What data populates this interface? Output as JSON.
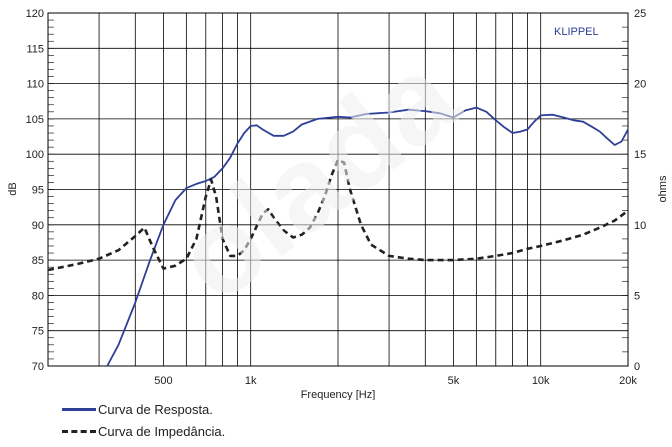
{
  "chart_data": {
    "type": "line",
    "xlabel": "Frequency [Hz]",
    "ylabel_left": "dB",
    "ylabel_right": "ohms",
    "x_scale": "log",
    "xlim": [
      200,
      20000
    ],
    "ylim_left": [
      70,
      120
    ],
    "ylim_right": [
      0,
      25
    ],
    "grid": true,
    "brand_label": "KLIPPEL",
    "x_ticks": [
      {
        "value": 500,
        "label": "500"
      },
      {
        "value": 1000,
        "label": "1k"
      },
      {
        "value": 5000,
        "label": "5k"
      },
      {
        "value": 10000,
        "label": "10k"
      },
      {
        "value": 20000,
        "label": "20k"
      }
    ],
    "y_ticks_left": [
      70,
      75,
      80,
      85,
      90,
      95,
      100,
      105,
      110,
      115,
      120
    ],
    "y_ticks_right": [
      0,
      5,
      10,
      15,
      20,
      25
    ],
    "series": [
      {
        "name": "Curva de Resposta.",
        "axis": "left",
        "color": "#2e3f98",
        "style": "solid",
        "points": [
          [
            320,
            70
          ],
          [
            350,
            73
          ],
          [
            400,
            79
          ],
          [
            450,
            85
          ],
          [
            500,
            90
          ],
          [
            550,
            93.5
          ],
          [
            600,
            95.2
          ],
          [
            650,
            95.8
          ],
          [
            700,
            96.2
          ],
          [
            750,
            96.8
          ],
          [
            800,
            98
          ],
          [
            850,
            99.5
          ],
          [
            900,
            101.5
          ],
          [
            950,
            103
          ],
          [
            1000,
            104
          ],
          [
            1050,
            104.1
          ],
          [
            1100,
            103.5
          ],
          [
            1200,
            102.6
          ],
          [
            1300,
            102.6
          ],
          [
            1400,
            103.2
          ],
          [
            1500,
            104.2
          ],
          [
            1700,
            105
          ],
          [
            2000,
            105.3
          ],
          [
            2200,
            105.2
          ],
          [
            2500,
            105.7
          ],
          [
            3000,
            105.9
          ],
          [
            3500,
            106.3
          ],
          [
            4000,
            106.1
          ],
          [
            4500,
            105.8
          ],
          [
            5000,
            105.2
          ],
          [
            5500,
            106.2
          ],
          [
            6000,
            106.6
          ],
          [
            6500,
            106
          ],
          [
            7000,
            104.8
          ],
          [
            7500,
            103.8
          ],
          [
            8000,
            103
          ],
          [
            8500,
            103.2
          ],
          [
            9000,
            103.5
          ],
          [
            9500,
            104.6
          ],
          [
            10000,
            105.5
          ],
          [
            11000,
            105.6
          ],
          [
            12000,
            105.2
          ],
          [
            13000,
            104.8
          ],
          [
            14000,
            104.6
          ],
          [
            15000,
            103.9
          ],
          [
            16000,
            103.2
          ],
          [
            17000,
            102.2
          ],
          [
            18000,
            101.3
          ],
          [
            19000,
            101.8
          ],
          [
            20000,
            103.5
          ]
        ]
      },
      {
        "name": "Curva de Impedância.",
        "axis": "right",
        "color": "#222222",
        "style": "dashed",
        "points": [
          [
            200,
            6.8
          ],
          [
            250,
            7.2
          ],
          [
            300,
            7.6
          ],
          [
            350,
            8.2
          ],
          [
            400,
            9.2
          ],
          [
            430,
            9.8
          ],
          [
            460,
            8.4
          ],
          [
            500,
            6.9
          ],
          [
            550,
            7.1
          ],
          [
            600,
            7.6
          ],
          [
            650,
            9
          ],
          [
            700,
            12
          ],
          [
            730,
            13.2
          ],
          [
            760,
            12
          ],
          [
            800,
            9
          ],
          [
            850,
            7.8
          ],
          [
            900,
            7.8
          ],
          [
            950,
            8.2
          ],
          [
            1000,
            9
          ],
          [
            1100,
            10.8
          ],
          [
            1150,
            11.1
          ],
          [
            1200,
            10.5
          ],
          [
            1300,
            9.6
          ],
          [
            1400,
            9.1
          ],
          [
            1500,
            9.3
          ],
          [
            1600,
            9.8
          ],
          [
            1700,
            10.8
          ],
          [
            1800,
            12
          ],
          [
            1900,
            13.5
          ],
          [
            2000,
            14.6
          ],
          [
            2100,
            14.4
          ],
          [
            2200,
            12.5
          ],
          [
            2400,
            10
          ],
          [
            2600,
            8.6
          ],
          [
            3000,
            7.8
          ],
          [
            3500,
            7.6
          ],
          [
            4000,
            7.5
          ],
          [
            5000,
            7.5
          ],
          [
            6000,
            7.6
          ],
          [
            7000,
            7.8
          ],
          [
            8000,
            8
          ],
          [
            9000,
            8.3
          ],
          [
            10000,
            8.5
          ],
          [
            12000,
            8.9
          ],
          [
            14000,
            9.3
          ],
          [
            16000,
            9.8
          ],
          [
            18000,
            10.3
          ],
          [
            20000,
            11
          ]
        ]
      }
    ]
  },
  "watermark": "olada"
}
